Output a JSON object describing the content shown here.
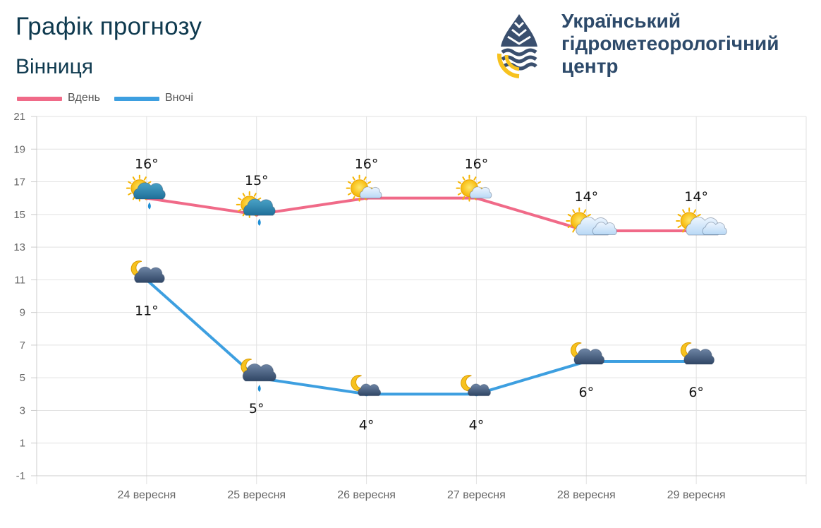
{
  "header": {
    "title": "Графік прогнозу",
    "city": "Вінниця"
  },
  "org": {
    "line1": "Український",
    "line2": "гідрометеорологічний",
    "line3": "центр",
    "logo_icon": "drop-wave-logo-icon",
    "colors": {
      "navy": "#3a4f6e",
      "yellow": "#f7c21e"
    }
  },
  "chart_data": {
    "type": "line",
    "categories": [
      "24 вересня",
      "25 вересня",
      "26 вересня",
      "27 вересня",
      "28 вересня",
      "29 вересня"
    ],
    "series": [
      {
        "name": "Вдень",
        "color": "#f06a88",
        "values": [
          16,
          15,
          16,
          16,
          14,
          14
        ],
        "labels": [
          "16°",
          "15°",
          "16°",
          "16°",
          "14°",
          "14°"
        ],
        "label_position": "above",
        "icons": [
          "sun-cloud-rain-icon",
          "sun-cloud-rain-icon",
          "sun-cloud-icon",
          "sun-cloud-icon",
          "sun-clouds-icon",
          "sun-clouds-icon"
        ]
      },
      {
        "name": "Вночі",
        "color": "#3d9fe0",
        "values": [
          11,
          5,
          4,
          4,
          6,
          6
        ],
        "labels": [
          "11°",
          "5°",
          "4°",
          "4°",
          "6°",
          "6°"
        ],
        "label_position": "below",
        "icons": [
          "moon-cloud-icon",
          "moon-cloud-rain-icon",
          "moon-cloud-icon",
          "moon-cloud-icon",
          "moon-cloud-icon",
          "moon-cloud-icon"
        ]
      }
    ],
    "yticks": [
      "21",
      "19",
      "17",
      "15",
      "13",
      "11",
      "9",
      "7",
      "5",
      "3",
      "1",
      "-1"
    ],
    "ylim": [
      -1,
      21
    ],
    "legend": "top-left",
    "grid": true
  }
}
